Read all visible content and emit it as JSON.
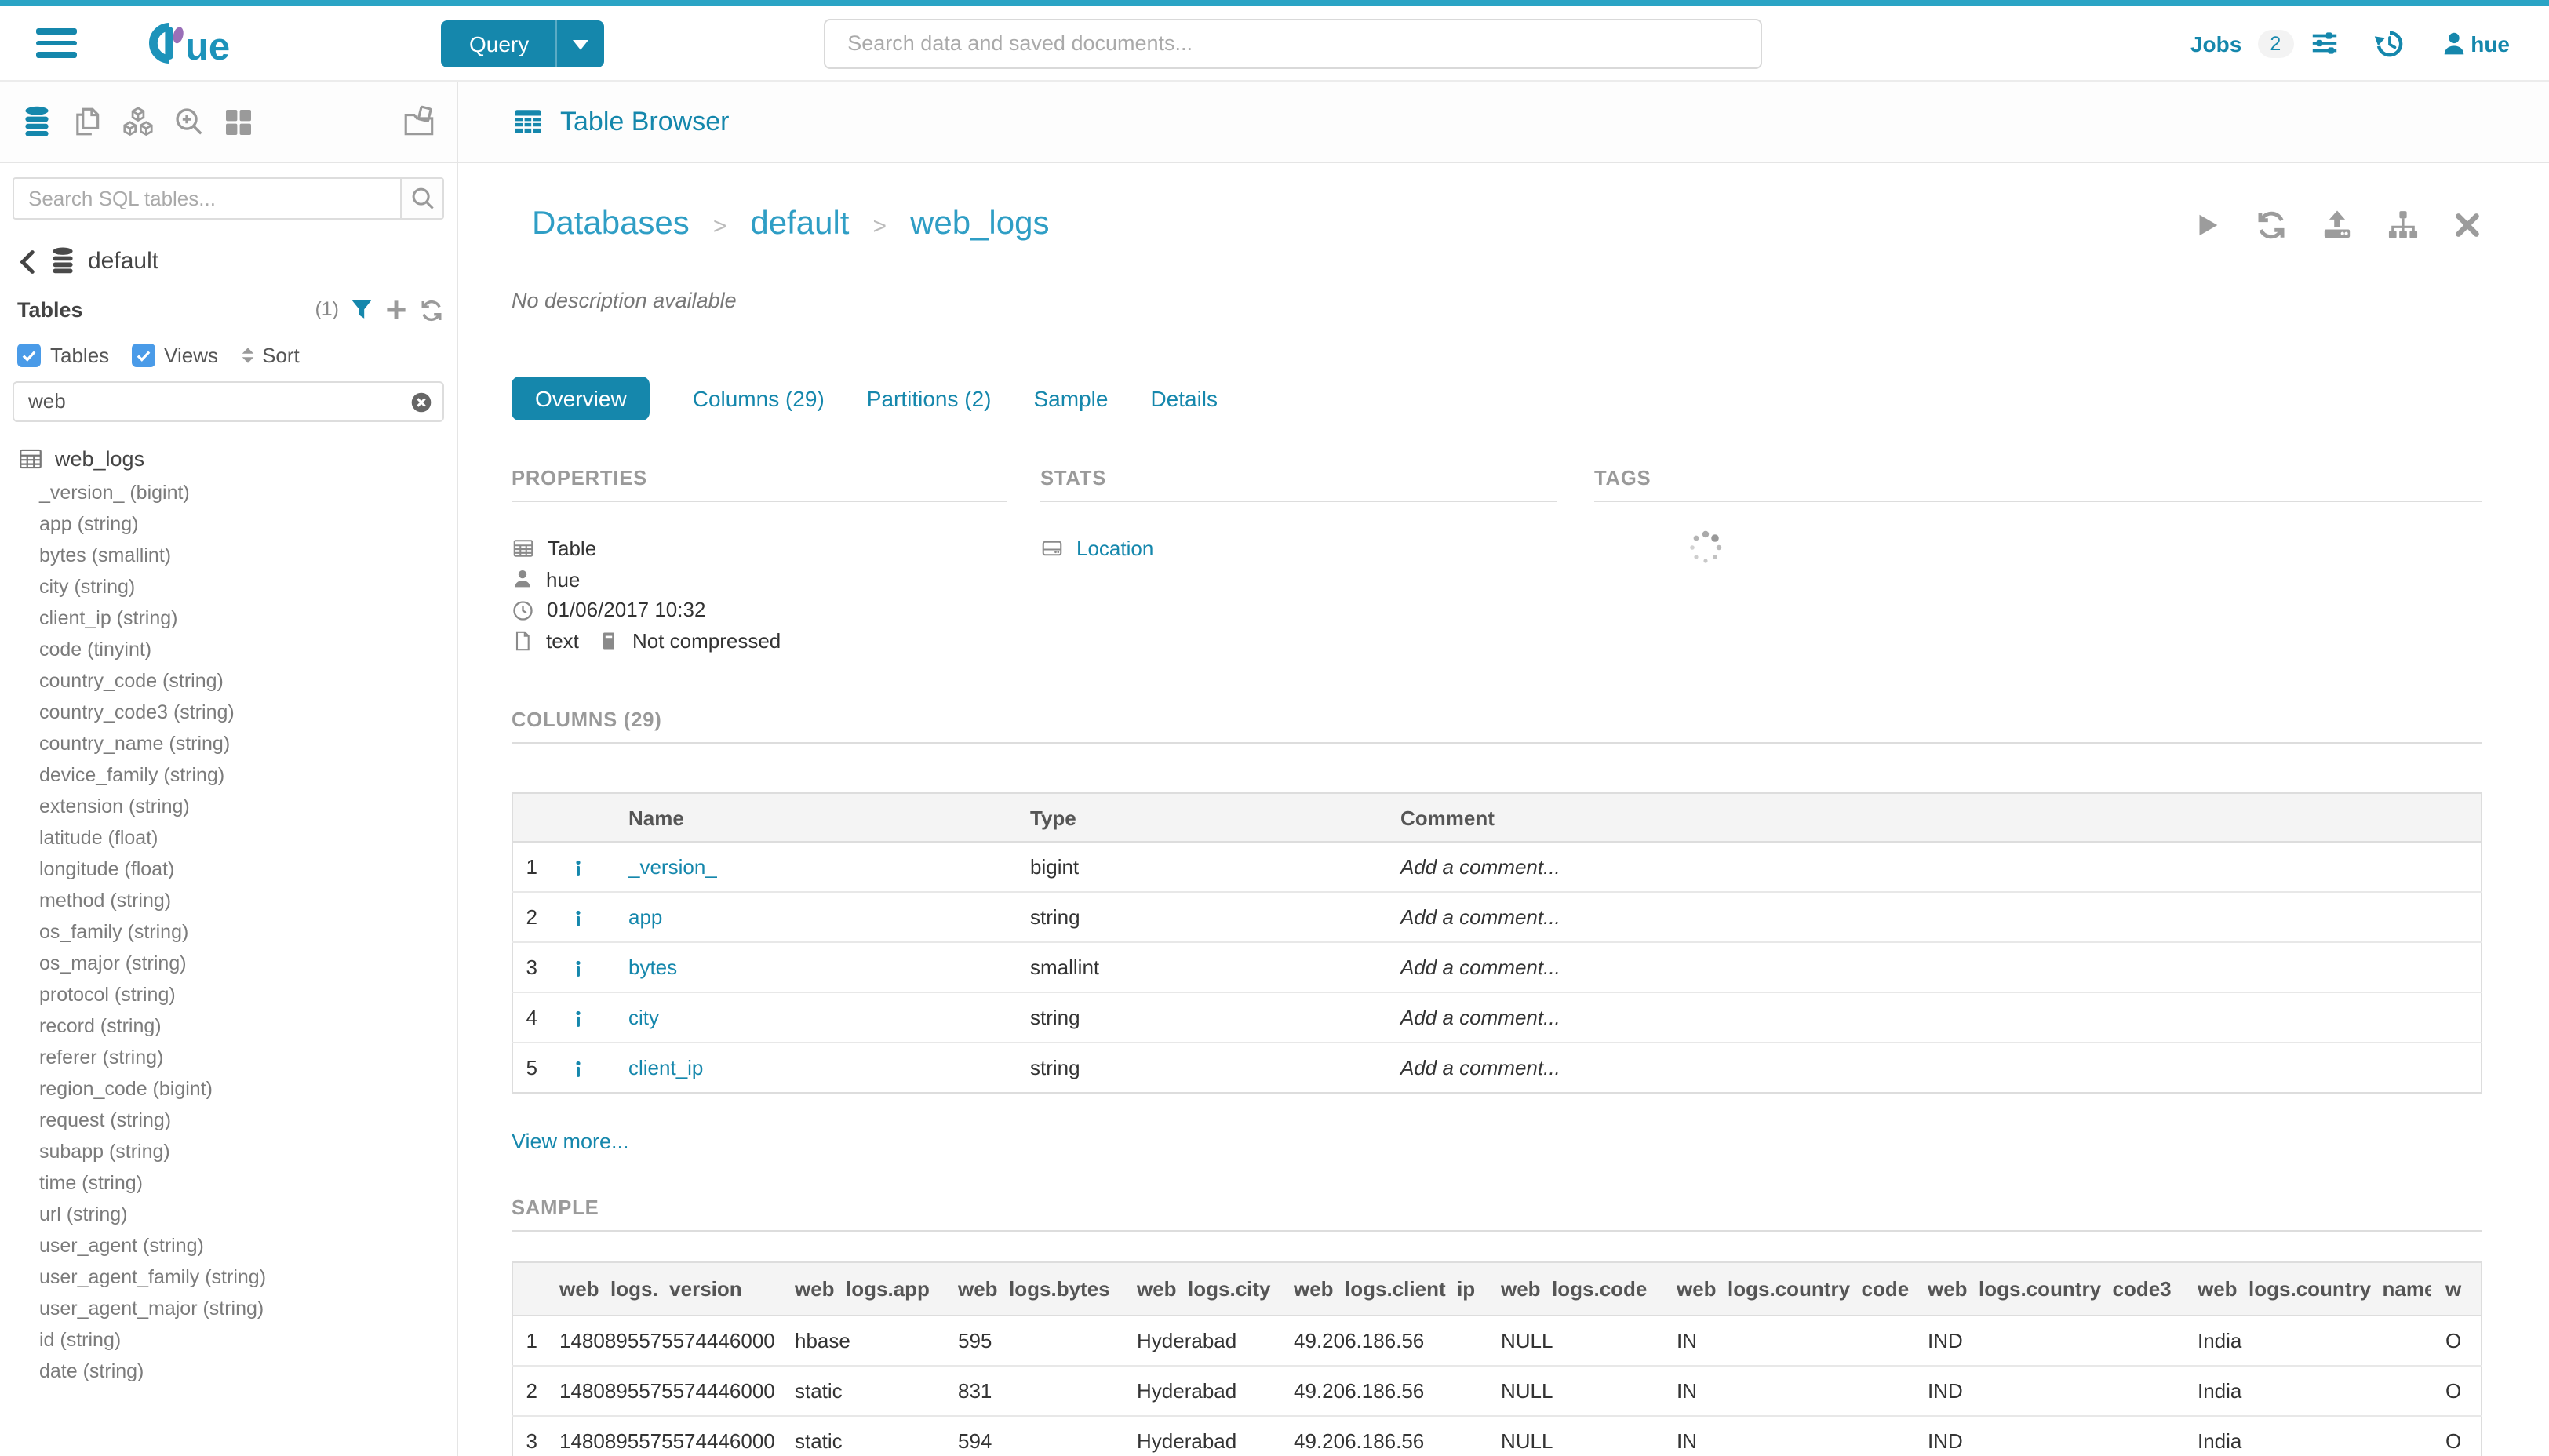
{
  "colors": {
    "primary": "#1587ac",
    "breadcrumb_link": "#2f9ec5",
    "top_strip": "#2aa4c5",
    "checkbox_blue": "#4a9be8",
    "logo_purple": "#9a6fb8"
  },
  "topbar": {
    "query_button": "Query",
    "search_placeholder": "Search data and saved documents...",
    "jobs_label": "Jobs",
    "jobs_count": "2",
    "username": "hue"
  },
  "sidebar": {
    "search_placeholder": "Search SQL tables...",
    "database_name": "default",
    "tables_label": "Tables",
    "tables_count": "(1)",
    "checkbox_tables": "Tables",
    "checkbox_views": "Views",
    "sort_label": "Sort",
    "filter_value": "web",
    "table_name": "web_logs",
    "columns": [
      "_version_ (bigint)",
      "app (string)",
      "bytes (smallint)",
      "city (string)",
      "client_ip (string)",
      "code (tinyint)",
      "country_code (string)",
      "country_code3 (string)",
      "country_name (string)",
      "device_family (string)",
      "extension (string)",
      "latitude (float)",
      "longitude (float)",
      "method (string)",
      "os_family (string)",
      "os_major (string)",
      "protocol (string)",
      "record (string)",
      "referer (string)",
      "region_code (bigint)",
      "request (string)",
      "subapp (string)",
      "time (string)",
      "url (string)",
      "user_agent (string)",
      "user_agent_family (string)",
      "user_agent_major (string)",
      "id (string)",
      "date (string)"
    ]
  },
  "main": {
    "header_title": "Table Browser",
    "breadcrumbs": [
      "Databases",
      "default",
      "web_logs"
    ],
    "description": "No description available",
    "tabs": [
      {
        "label": "Overview",
        "active": true
      },
      {
        "label": "Columns (29)",
        "active": false
      },
      {
        "label": "Partitions (2)",
        "active": false
      },
      {
        "label": "Sample",
        "active": false
      },
      {
        "label": "Details",
        "active": false
      }
    ],
    "properties": {
      "title": "PROPERTIES",
      "type_label": "Table",
      "owner": "hue",
      "created": "01/06/2017 10:32",
      "format": "text",
      "compression": "Not compressed"
    },
    "stats": {
      "title": "STATS",
      "location_label": "Location"
    },
    "tags": {
      "title": "TAGS"
    },
    "columns_section": {
      "title": "COLUMNS (29)",
      "headers": {
        "name": "Name",
        "type": "Type",
        "comment": "Comment"
      },
      "rows": [
        {
          "num": "1",
          "name": "_version_",
          "type": "bigint",
          "comment": "Add a comment..."
        },
        {
          "num": "2",
          "name": "app",
          "type": "string",
          "comment": "Add a comment..."
        },
        {
          "num": "3",
          "name": "bytes",
          "type": "smallint",
          "comment": "Add a comment..."
        },
        {
          "num": "4",
          "name": "city",
          "type": "string",
          "comment": "Add a comment..."
        },
        {
          "num": "5",
          "name": "client_ip",
          "type": "string",
          "comment": "Add a comment..."
        }
      ],
      "view_more": "View more..."
    },
    "sample_section": {
      "title": "SAMPLE",
      "headers": [
        "",
        "web_logs._version_",
        "web_logs.app",
        "web_logs.bytes",
        "web_logs.city",
        "web_logs.client_ip",
        "web_logs.code",
        "web_logs.country_code",
        "web_logs.country_code3",
        "web_logs.country_name",
        "w"
      ],
      "rows": [
        {
          "num": "1",
          "version": "1480895575574446000",
          "app": "hbase",
          "bytes": "595",
          "city": "Hyderabad",
          "client_ip": "49.206.186.56",
          "code": "NULL",
          "country_code": "IN",
          "country_code3": "IND",
          "country_name": "India",
          "clipped": "O"
        },
        {
          "num": "2",
          "version": "1480895575574446000",
          "app": "static",
          "bytes": "831",
          "city": "Hyderabad",
          "client_ip": "49.206.186.56",
          "code": "NULL",
          "country_code": "IN",
          "country_code3": "IND",
          "country_name": "India",
          "clipped": "O"
        },
        {
          "num": "3",
          "version": "1480895575574446000",
          "app": "static",
          "bytes": "594",
          "city": "Hyderabad",
          "client_ip": "49.206.186.56",
          "code": "NULL",
          "country_code": "IN",
          "country_code3": "IND",
          "country_name": "India",
          "clipped": "O"
        }
      ]
    }
  }
}
